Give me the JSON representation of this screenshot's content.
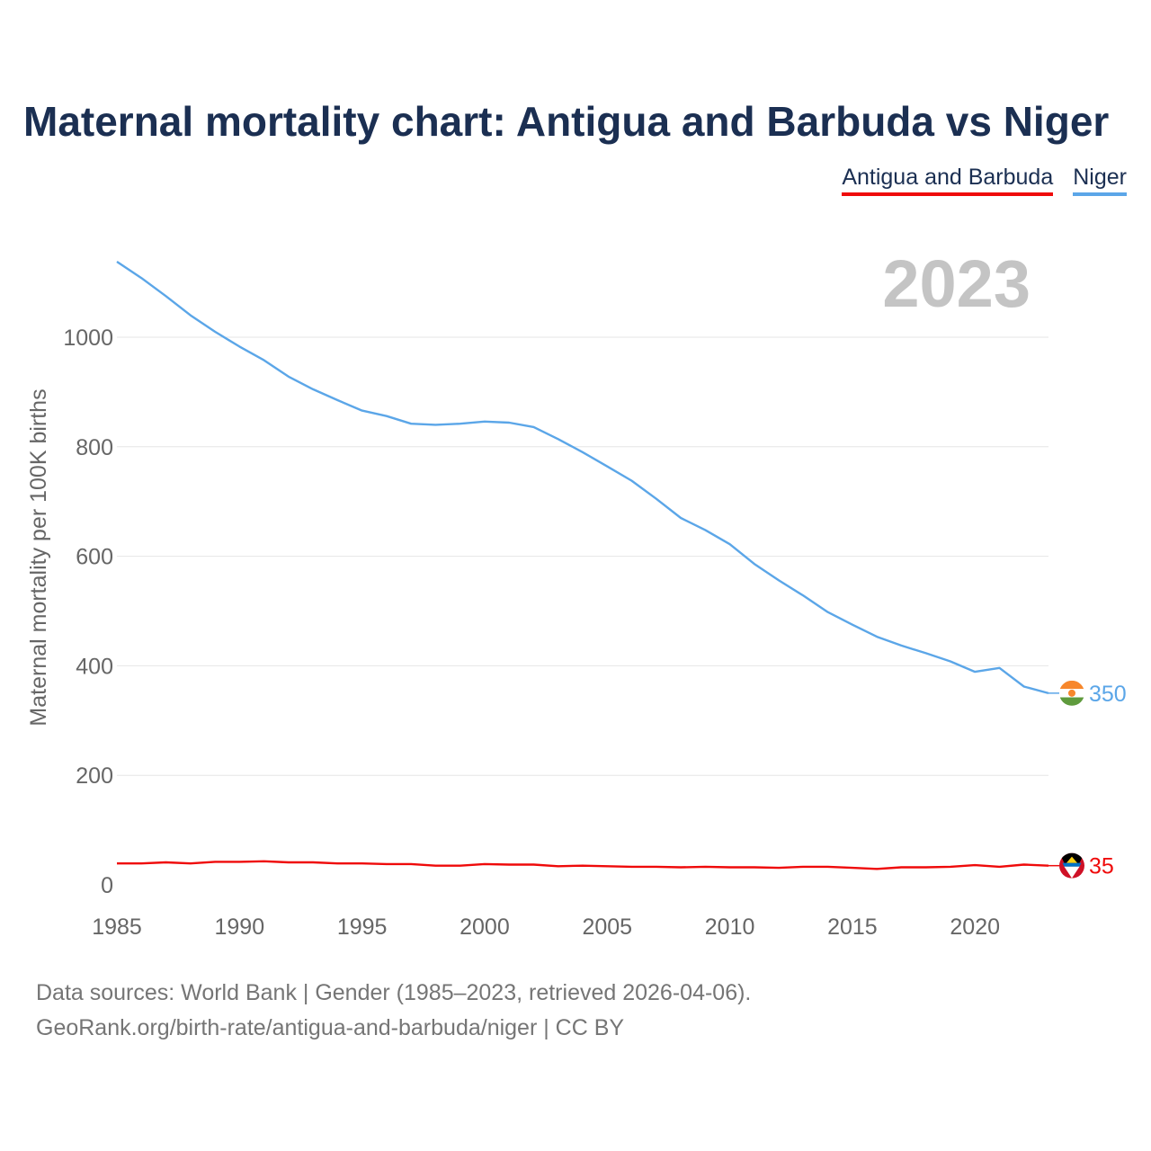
{
  "title": "Maternal mortality chart: Antigua and Barbuda vs Niger",
  "legend": [
    {
      "label": "Antigua and Barbuda",
      "color": "#ef0a0a"
    },
    {
      "label": "Niger",
      "color": "#5ba6e8"
    }
  ],
  "footer": {
    "line1": "Data sources: World Bank | Gender (1985–2023, retrieved 2026-04-06).",
    "line2": "GeoRank.org/birth-rate/antigua-and-barbuda/niger | CC BY"
  },
  "chart_data": {
    "type": "line",
    "title": "Maternal mortality chart: Antigua and Barbuda vs Niger",
    "year_label": "2023",
    "xlabel": "",
    "ylabel": "Maternal mortality per 100K births",
    "xlim": [
      1985,
      2023
    ],
    "ylim": [
      0,
      1150
    ],
    "x_ticks": [
      1985,
      1990,
      1995,
      2000,
      2005,
      2010,
      2015,
      2020
    ],
    "y_ticks": [
      0,
      200,
      400,
      600,
      800,
      1000
    ],
    "grid": true,
    "x": [
      1985,
      1986,
      1987,
      1988,
      1989,
      1990,
      1991,
      1992,
      1993,
      1994,
      1995,
      1996,
      1997,
      1998,
      1999,
      2000,
      2001,
      2002,
      2003,
      2004,
      2005,
      2006,
      2007,
      2008,
      2009,
      2010,
      2011,
      2012,
      2013,
      2014,
      2015,
      2016,
      2017,
      2018,
      2019,
      2020,
      2021,
      2022,
      2023
    ],
    "series": [
      {
        "name": "Niger",
        "color": "#5ba6e8",
        "end_label": "350",
        "flag_icon": "niger-flag-icon",
        "values": [
          1138,
          1108,
          1075,
          1040,
          1010,
          983,
          958,
          928,
          905,
          885,
          866,
          856,
          842,
          840,
          842,
          846,
          844,
          836,
          814,
          790,
          764,
          738,
          705,
          670,
          648,
          622,
          586,
          556,
          528,
          498,
          475,
          453,
          437,
          423,
          408,
          389,
          396,
          362,
          350
        ]
      },
      {
        "name": "Antigua and Barbuda",
        "color": "#ef0a0a",
        "end_label": "35",
        "flag_icon": "antigua-and-barbuda-flag-icon",
        "values": [
          39,
          39,
          41,
          39,
          42,
          42,
          43,
          41,
          41,
          39,
          39,
          38,
          38,
          35,
          35,
          38,
          37,
          37,
          34,
          35,
          34,
          33,
          33,
          32,
          33,
          32,
          32,
          31,
          33,
          33,
          31,
          29,
          32,
          32,
          33,
          36,
          33,
          37,
          35
        ]
      }
    ]
  }
}
